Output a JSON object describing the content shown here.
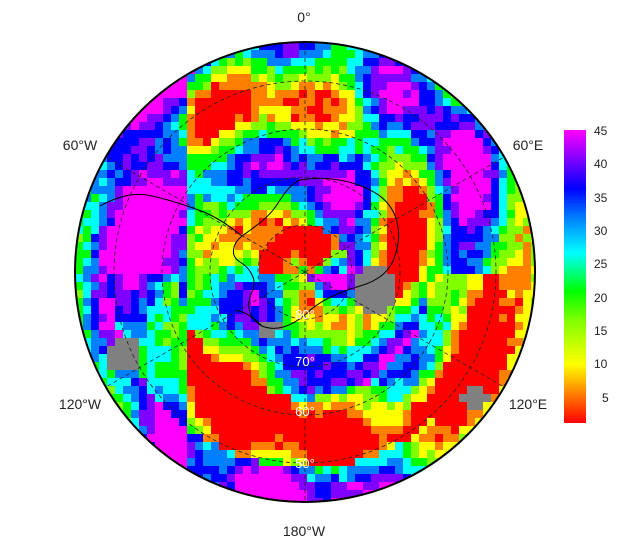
{
  "map": {
    "projection": "south-polar-stereographic",
    "longitude_labels": [
      "0°",
      "60°E",
      "120°E",
      "180°W",
      "120°W",
      "60°W"
    ],
    "latitude_labels": [
      "80°",
      "70°",
      "60°",
      "50°"
    ],
    "graticule": "dashed",
    "missing_value_color": "#808080"
  },
  "colorbar": {
    "ticks": [
      "45",
      "40",
      "35",
      "30",
      "25",
      "20",
      "15",
      "10",
      "5"
    ],
    "range": [
      1,
      45
    ],
    "colors": [
      "#ff0000",
      "#ff8000",
      "#ffff00",
      "#80ff00",
      "#00ff00",
      "#00ffff",
      "#0080ff",
      "#0000ff",
      "#8000ff",
      "#ff00ff"
    ]
  }
}
